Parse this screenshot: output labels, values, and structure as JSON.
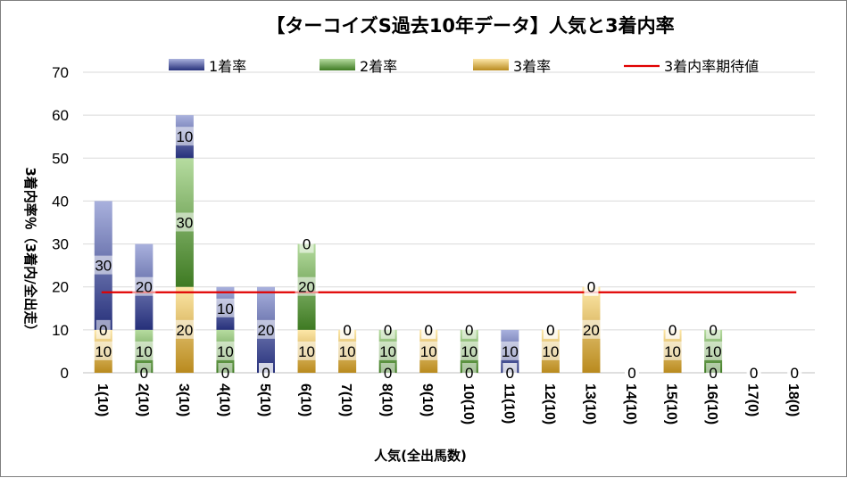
{
  "chart_data": {
    "type": "bar",
    "stacked": true,
    "title": "【ターコイズS過去10年データ】人気と3着内率",
    "xlabel": "人気(全出馬数)",
    "ylabel": "3着内率％（3着内/全出走）",
    "ylim": [
      0,
      70
    ],
    "yticks": [
      0,
      10,
      20,
      30,
      40,
      50,
      60,
      70
    ],
    "grid": true,
    "legend_position": "top",
    "categories": [
      "1(10)",
      "2(10)",
      "3(10)",
      "4(10)",
      "5(10)",
      "6(10)",
      "7(10)",
      "8(10)",
      "9(10)",
      "10(10)",
      "11(10)",
      "12(10)",
      "13(10)",
      "14(10)",
      "15(10)",
      "16(10)",
      "17(0)",
      "18(0)"
    ],
    "series": [
      {
        "name": "3着率",
        "values": [
          10,
          0,
          20,
          0,
          0,
          10,
          10,
          0,
          10,
          0,
          0,
          10,
          20,
          0,
          10,
          0,
          0,
          0
        ],
        "color": "#c89a2a"
      },
      {
        "name": "2着率",
        "values": [
          0,
          10,
          30,
          10,
          0,
          20,
          0,
          10,
          0,
          10,
          0,
          0,
          0,
          0,
          0,
          10,
          0,
          0
        ],
        "color": "#4f8a2f"
      },
      {
        "name": "1着率",
        "values": [
          30,
          20,
          10,
          10,
          20,
          0,
          0,
          0,
          0,
          0,
          10,
          0,
          0,
          0,
          0,
          0,
          0,
          0
        ],
        "color": "#2e3a87"
      }
    ],
    "reference_line": {
      "name": "3着内率期待値",
      "value": 18.75,
      "color": "#e00000"
    },
    "legend_order": [
      "1着率",
      "2着率",
      "3着率",
      "3着内率期待値"
    ]
  }
}
